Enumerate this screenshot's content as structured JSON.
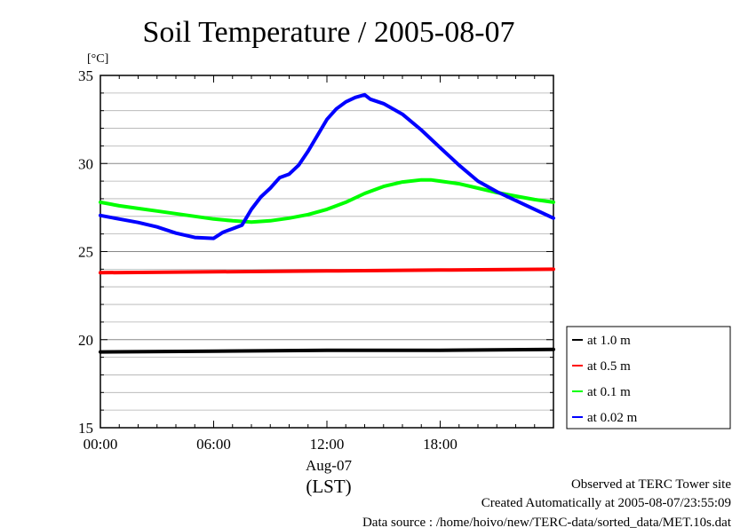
{
  "chart_data": {
    "type": "line",
    "title": "Soil Temperature / 2005-08-07",
    "ylabel": "[°C]",
    "xlabel_date": "Aug-07",
    "xlabel_zone": "(LST)",
    "xlim": [
      0,
      24
    ],
    "ylim": [
      15,
      35
    ],
    "x_ticks": [
      {
        "value": 0,
        "label": "00:00"
      },
      {
        "value": 6,
        "label": "06:00"
      },
      {
        "value": 12,
        "label": "12:00"
      },
      {
        "value": 18,
        "label": "18:00"
      }
    ],
    "y_ticks": [
      {
        "value": 15,
        "label": "15"
      },
      {
        "value": 20,
        "label": "20"
      },
      {
        "value": 25,
        "label": "25"
      },
      {
        "value": 30,
        "label": "30"
      },
      {
        "value": 35,
        "label": "35"
      }
    ],
    "grid": true,
    "legend_position": "right-bottom",
    "series": [
      {
        "name": "at 1.0 m",
        "color": "#000000",
        "x": [
          0,
          6,
          12,
          18,
          24
        ],
        "y": [
          19.3,
          19.35,
          19.4,
          19.4,
          19.45
        ]
      },
      {
        "name": "at 0.5 m",
        "color": "#ff0000",
        "x": [
          0,
          6,
          12,
          18,
          24
        ],
        "y": [
          23.8,
          23.85,
          23.9,
          23.95,
          24.0
        ]
      },
      {
        "name": "at 0.1 m",
        "color": "#00ff00",
        "x": [
          0,
          1,
          2,
          3,
          4,
          5,
          6,
          7,
          8,
          9,
          10,
          11,
          12,
          13,
          14,
          15,
          16,
          17,
          17.5,
          18,
          19,
          20,
          21,
          22,
          23,
          24
        ],
        "y": [
          27.8,
          27.6,
          27.45,
          27.3,
          27.15,
          27.0,
          26.85,
          26.75,
          26.68,
          26.75,
          26.9,
          27.1,
          27.4,
          27.8,
          28.3,
          28.7,
          28.95,
          29.07,
          29.07,
          29.0,
          28.85,
          28.6,
          28.35,
          28.15,
          27.95,
          27.8
        ]
      },
      {
        "name": "at 0.02 m",
        "color": "#0000ff",
        "x": [
          0,
          1,
          2,
          3,
          4,
          5,
          6,
          6.5,
          7,
          7.5,
          8,
          8.5,
          9,
          9.5,
          10,
          10.5,
          11,
          11.5,
          12,
          12.5,
          13,
          13.5,
          14,
          14.3,
          15,
          16,
          17,
          18,
          19,
          20,
          21,
          22,
          23,
          24
        ],
        "y": [
          27.05,
          26.85,
          26.65,
          26.4,
          26.05,
          25.8,
          25.75,
          26.1,
          26.3,
          26.5,
          27.4,
          28.1,
          28.6,
          29.2,
          29.4,
          29.9,
          30.7,
          31.6,
          32.5,
          33.1,
          33.5,
          33.75,
          33.9,
          33.65,
          33.4,
          32.8,
          31.9,
          30.9,
          29.9,
          29.0,
          28.4,
          27.9,
          27.4,
          26.9
        ]
      }
    ]
  },
  "footer": {
    "observed": "Observed at TERC Tower site",
    "created": "Created Automatically at 2005-08-07/23:55:09",
    "source": "Data source : /home/hoivo/new/TERC-data/sorted_data/MET.10s.dat"
  }
}
